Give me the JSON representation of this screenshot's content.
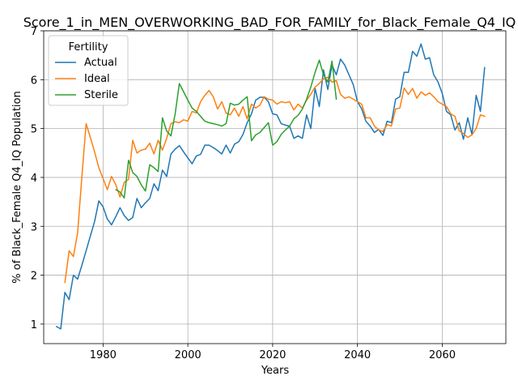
{
  "chart_data": {
    "type": "line",
    "title": "Score_1_in_MEN_OVERWORKING_BAD_FOR_FAMILY_for_Black_Female_Q4_IQ",
    "xlabel": "Years",
    "ylabel": "% of Black_Female Q4_IQ Population",
    "xlim": [
      1966,
      2075
    ],
    "ylim": [
      0.6,
      7.0
    ],
    "x_ticks": [
      1980,
      2000,
      2020,
      2040,
      2060
    ],
    "y_ticks": [
      1,
      2,
      3,
      4,
      5,
      6,
      7
    ],
    "grid": true,
    "legend": {
      "title": "Fertility",
      "placement": "top-left"
    },
    "series": [
      {
        "name": "Actual",
        "color": "#1f77b4",
        "x": [
          1969,
          1970,
          1971,
          1972,
          1973,
          1974,
          1975,
          1976,
          1977,
          1978,
          1979,
          1980,
          1981,
          1982,
          1983,
          1984,
          1985,
          1986,
          1987,
          1988,
          1989,
          1990,
          1991,
          1992,
          1993,
          1994,
          1995,
          1996,
          1997,
          1998,
          1999,
          2000,
          2001,
          2002,
          2003,
          2004,
          2005,
          2006,
          2007,
          2008,
          2009,
          2010,
          2011,
          2012,
          2013,
          2014,
          2015,
          2016,
          2017,
          2018,
          2019,
          2020,
          2021,
          2022,
          2023,
          2024,
          2025,
          2026,
          2027,
          2028,
          2029,
          2030,
          2031,
          2032,
          2033,
          2034,
          2035,
          2036,
          2037,
          2038,
          2039,
          2040,
          2041,
          2042,
          2043,
          2044,
          2045,
          2046,
          2047,
          2048,
          2049,
          2050,
          2051,
          2052,
          2053,
          2054,
          2055,
          2056,
          2057,
          2058,
          2059,
          2060,
          2061,
          2062,
          2063,
          2064,
          2065,
          2066,
          2067,
          2068,
          2069,
          2070
        ],
        "y": [
          0.95,
          0.9,
          1.65,
          1.5,
          2.0,
          1.92,
          2.2,
          2.5,
          2.8,
          3.1,
          3.52,
          3.4,
          3.15,
          3.03,
          3.2,
          3.38,
          3.22,
          3.12,
          3.18,
          3.57,
          3.38,
          3.48,
          3.57,
          3.87,
          3.73,
          4.15,
          4.02,
          4.48,
          4.58,
          4.65,
          4.52,
          4.4,
          4.28,
          4.44,
          4.47,
          4.66,
          4.66,
          4.61,
          4.55,
          4.48,
          4.66,
          4.5,
          4.68,
          4.73,
          4.88,
          5.12,
          5.3,
          5.58,
          5.64,
          5.64,
          5.55,
          5.3,
          5.28,
          5.1,
          5.07,
          5.05,
          4.8,
          4.85,
          4.8,
          5.28,
          5.0,
          5.82,
          5.45,
          6.2,
          5.8,
          6.3,
          6.1,
          6.42,
          6.3,
          6.1,
          5.9,
          5.55,
          5.4,
          5.15,
          5.05,
          4.92,
          4.98,
          4.86,
          5.15,
          5.12,
          5.6,
          5.65,
          6.15,
          6.15,
          6.58,
          6.48,
          6.73,
          6.42,
          6.45,
          6.1,
          5.95,
          5.72,
          5.35,
          5.28,
          4.97,
          5.12,
          4.78,
          5.22,
          4.88,
          5.68,
          5.35,
          6.25
        ]
      },
      {
        "name": "Ideal",
        "color": "#ff7f0e",
        "x": [
          1971,
          1972,
          1973,
          1974,
          1975,
          1976,
          1977,
          1978,
          1979,
          1980,
          1981,
          1982,
          1983,
          1984,
          1985,
          1986,
          1987,
          1988,
          1989,
          1990,
          1991,
          1992,
          1993,
          1994,
          1995,
          1996,
          1997,
          1998,
          1999,
          2000,
          2001,
          2002,
          2003,
          2004,
          2005,
          2006,
          2007,
          2008,
          2009,
          2010,
          2011,
          2012,
          2013,
          2014,
          2015,
          2016,
          2017,
          2018,
          2019,
          2020,
          2021,
          2022,
          2023,
          2024,
          2025,
          2026,
          2027,
          2028,
          2029,
          2030,
          2031,
          2032,
          2033,
          2034,
          2035,
          2036,
          2037,
          2038,
          2039,
          2040,
          2041,
          2042,
          2043,
          2044,
          2045,
          2046,
          2047,
          2048,
          2049,
          2050,
          2051,
          2052,
          2053,
          2054,
          2055,
          2056,
          2057,
          2058,
          2059,
          2060,
          2061,
          2062,
          2063,
          2064,
          2065,
          2066,
          2067,
          2068,
          2069,
          2070
        ],
        "y": [
          1.85,
          2.5,
          2.38,
          2.87,
          4.0,
          5.1,
          4.82,
          4.52,
          4.2,
          3.98,
          3.75,
          4.02,
          3.85,
          3.6,
          3.9,
          3.96,
          4.76,
          4.5,
          4.56,
          4.58,
          4.7,
          4.48,
          4.76,
          4.56,
          4.8,
          5.1,
          5.14,
          5.12,
          5.18,
          5.15,
          5.35,
          5.32,
          5.55,
          5.68,
          5.78,
          5.65,
          5.4,
          5.55,
          5.32,
          5.28,
          5.42,
          5.25,
          5.45,
          5.2,
          5.5,
          5.42,
          5.48,
          5.65,
          5.6,
          5.58,
          5.5,
          5.55,
          5.53,
          5.55,
          5.38,
          5.5,
          5.42,
          5.58,
          5.7,
          5.85,
          5.92,
          6.02,
          6.05,
          5.95,
          5.98,
          5.7,
          5.62,
          5.65,
          5.6,
          5.55,
          5.5,
          5.22,
          5.22,
          5.05,
          4.97,
          4.94,
          5.08,
          5.05,
          5.4,
          5.42,
          5.83,
          5.7,
          5.82,
          5.62,
          5.75,
          5.68,
          5.73,
          5.65,
          5.55,
          5.5,
          5.45,
          5.3,
          5.25,
          4.95,
          4.9,
          4.82,
          4.87,
          5.0,
          5.28,
          5.25
        ],
        "x_end": 2070
      },
      {
        "name": "Sterile",
        "color": "#2ca02c",
        "x": [
          1983,
          1984,
          1985,
          1986,
          1987,
          1988,
          1989,
          1990,
          1991,
          1992,
          1993,
          1994,
          1995,
          1996,
          1997,
          1998,
          1999,
          2000,
          2001,
          2002,
          2003,
          2004,
          2005,
          2006,
          2007,
          2008,
          2009,
          2010,
          2011,
          2012,
          2013,
          2014,
          2015,
          2016,
          2017,
          2018,
          2019,
          2020,
          2021,
          2022,
          2023,
          2024,
          2025,
          2026,
          2027,
          2028,
          2029,
          2030,
          2031,
          2032,
          2033,
          2034,
          2035
        ],
        "y": [
          3.75,
          3.7,
          3.58,
          4.35,
          4.1,
          4.02,
          3.85,
          3.72,
          4.26,
          4.2,
          4.12,
          5.22,
          4.95,
          4.85,
          5.3,
          5.92,
          5.75,
          5.58,
          5.42,
          5.35,
          5.25,
          5.15,
          5.12,
          5.1,
          5.08,
          5.05,
          5.1,
          5.52,
          5.48,
          5.5,
          5.58,
          5.65,
          4.75,
          4.87,
          4.92,
          5.02,
          5.12,
          4.66,
          4.73,
          4.88,
          4.97,
          5.05,
          5.2,
          5.27,
          5.4,
          5.6,
          5.85,
          6.15,
          6.4,
          6.1,
          5.95,
          6.38,
          5.6
        ]
      }
    ]
  }
}
